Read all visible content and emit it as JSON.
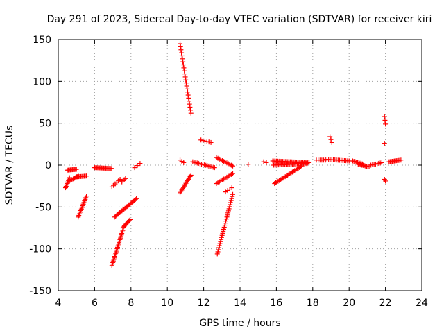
{
  "chart_data": {
    "type": "scatter",
    "title": "Day 291 of 2023, Sidereal Day-to-day VTEC variation (SDTVAR) for receiver kiri",
    "xlabel": "GPS time / hours",
    "ylabel": "SDTVAR / TECUs",
    "xlim": [
      4,
      24
    ],
    "ylim": [
      -150,
      150
    ],
    "xticks": [
      "4",
      "6",
      "8",
      "10",
      "12",
      "14",
      "16",
      "18",
      "20",
      "22",
      "24"
    ],
    "yticks": [
      "150",
      "100",
      "50",
      "0",
      "-50",
      "-100",
      "-150"
    ],
    "grid": true,
    "marker": "+",
    "series": [
      {
        "name": "SDTVAR",
        "color": "#ff0000",
        "segments": [
          {
            "x0": 4.4,
            "x1": 4.62,
            "y0": -27,
            "y1": -15,
            "n": 8
          },
          {
            "x0": 4.5,
            "x1": 5.0,
            "y0": -6,
            "y1": -5,
            "n": 10
          },
          {
            "x0": 4.62,
            "x1": 5.1,
            "y0": -19,
            "y1": -13,
            "n": 8
          },
          {
            "x0": 5.0,
            "x1": 5.55,
            "y0": -14,
            "y1": -13,
            "n": 10
          },
          {
            "x0": 5.1,
            "x1": 5.55,
            "y0": -62,
            "y1": -37,
            "n": 14
          },
          {
            "x0": 6.0,
            "x1": 6.95,
            "y0": -3,
            "y1": -4,
            "n": 18
          },
          {
            "x0": 6.95,
            "x1": 7.4,
            "y0": -26,
            "y1": -17,
            "n": 6
          },
          {
            "x0": 7.5,
            "x1": 7.7,
            "y0": -20,
            "y1": -16,
            "n": 4
          },
          {
            "x0": 6.95,
            "x1": 7.55,
            "y0": -120,
            "y1": -78,
            "n": 24
          },
          {
            "x0": 7.55,
            "x1": 7.95,
            "y0": -75,
            "y1": -65,
            "n": 10
          },
          {
            "x0": 7.1,
            "x1": 8.3,
            "y0": -62,
            "y1": -40,
            "n": 22
          },
          {
            "x0": 8.2,
            "x1": 8.5,
            "y0": -3,
            "y1": 2,
            "n": 3
          },
          {
            "x0": 10.7,
            "x1": 11.3,
            "y0": 145,
            "y1": 62,
            "n": 24
          },
          {
            "x0": 10.7,
            "x1": 10.9,
            "y0": 6,
            "y1": 3,
            "n": 3
          },
          {
            "x0": 10.7,
            "x1": 11.3,
            "y0": -33,
            "y1": -12,
            "n": 14
          },
          {
            "x0": 11.4,
            "x1": 12.6,
            "y0": 4,
            "y1": -3,
            "n": 16
          },
          {
            "x0": 11.85,
            "x1": 12.4,
            "y0": 30,
            "y1": 27,
            "n": 6
          },
          {
            "x0": 12.7,
            "x1": 13.6,
            "y0": 9,
            "y1": -1,
            "n": 12
          },
          {
            "x0": 12.7,
            "x1": 13.6,
            "y0": -22,
            "y1": -10,
            "n": 12
          },
          {
            "x0": 12.75,
            "x1": 13.6,
            "y0": -106,
            "y1": -35,
            "n": 30
          },
          {
            "x0": 13.2,
            "x1": 13.55,
            "y0": -32,
            "y1": -27,
            "n": 4
          },
          {
            "x0": 14.45,
            "x1": 14.5,
            "y0": 1,
            "y1": 1,
            "n": 1
          },
          {
            "x0": 15.3,
            "x1": 15.45,
            "y0": 4,
            "y1": 3,
            "n": 2
          },
          {
            "x0": 15.8,
            "x1": 17.8,
            "y0": 5,
            "y1": 3,
            "n": 30
          },
          {
            "x0": 15.85,
            "x1": 17.7,
            "y0": 0,
            "y1": 2,
            "n": 28
          },
          {
            "x0": 15.9,
            "x1": 17.4,
            "y0": -22,
            "y1": -1,
            "n": 24
          },
          {
            "x0": 18.2,
            "x1": 18.7,
            "y0": 6,
            "y1": 6,
            "n": 6
          },
          {
            "x0": 18.95,
            "x1": 19.05,
            "y0": 34,
            "y1": 27,
            "n": 3
          },
          {
            "x0": 18.7,
            "x1": 20.0,
            "y0": 7,
            "y1": 5,
            "n": 16
          },
          {
            "x0": 20.2,
            "x1": 20.8,
            "y0": 5,
            "y1": 1,
            "n": 10
          },
          {
            "x0": 20.5,
            "x1": 21.1,
            "y0": 1,
            "y1": -2,
            "n": 10
          },
          {
            "x0": 21.2,
            "x1": 21.8,
            "y0": 0,
            "y1": 3,
            "n": 8
          },
          {
            "x0": 21.95,
            "x1": 22.0,
            "y0": 58,
            "y1": 49,
            "n": 3
          },
          {
            "x0": 21.95,
            "x1": 22.0,
            "y0": 26,
            "y1": 26,
            "n": 1
          },
          {
            "x0": 21.95,
            "x1": 22.0,
            "y0": -17,
            "y1": -19,
            "n": 2
          },
          {
            "x0": 22.2,
            "x1": 22.85,
            "y0": 4,
            "y1": 6,
            "n": 12
          }
        ]
      }
    ]
  }
}
